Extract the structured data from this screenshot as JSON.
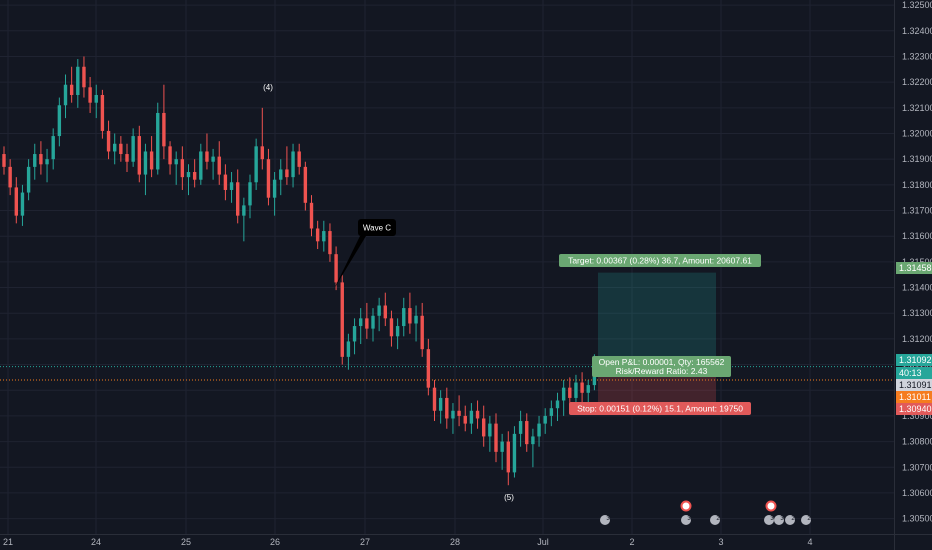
{
  "chart_data": {
    "type": "candlestick",
    "x_ticks": [
      "21",
      "24",
      "25",
      "26",
      "27",
      "28",
      "Jul",
      "2",
      "3",
      "4"
    ],
    "y_ticks": [
      "1.32500",
      "1.32400",
      "1.32300",
      "1.32200",
      "1.32100",
      "1.32000",
      "1.31900",
      "1.31800",
      "1.31700",
      "1.31600",
      "1.31500",
      "1.31400",
      "1.31300",
      "1.31200",
      "1.31100",
      "1.31000",
      "1.30900",
      "1.30800",
      "1.30700",
      "1.30600",
      "1.30500"
    ],
    "ylim": [
      1.3044,
      1.3252
    ],
    "series": [
      {
        "t": 0,
        "o": 1.3192,
        "h": 1.3195,
        "l": 1.3184,
        "c": 1.3187
      },
      {
        "t": 1,
        "o": 1.3187,
        "h": 1.319,
        "l": 1.3176,
        "c": 1.3179
      },
      {
        "t": 2,
        "o": 1.3179,
        "h": 1.3183,
        "l": 1.3165,
        "c": 1.3168
      },
      {
        "t": 3,
        "o": 1.3168,
        "h": 1.318,
        "l": 1.3164,
        "c": 1.3177
      },
      {
        "t": 4,
        "o": 1.3177,
        "h": 1.319,
        "l": 1.3174,
        "c": 1.3187
      },
      {
        "t": 5,
        "o": 1.3187,
        "h": 1.3196,
        "l": 1.3182,
        "c": 1.3192
      },
      {
        "t": 6,
        "o": 1.3192,
        "h": 1.3197,
        "l": 1.3184,
        "c": 1.3188
      },
      {
        "t": 7,
        "o": 1.3188,
        "h": 1.3194,
        "l": 1.3181,
        "c": 1.319
      },
      {
        "t": 8,
        "o": 1.319,
        "h": 1.3202,
        "l": 1.3186,
        "c": 1.3199
      },
      {
        "t": 9,
        "o": 1.3199,
        "h": 1.3214,
        "l": 1.3195,
        "c": 1.3211
      },
      {
        "t": 10,
        "o": 1.3211,
        "h": 1.3223,
        "l": 1.3206,
        "c": 1.3219
      },
      {
        "t": 11,
        "o": 1.3219,
        "h": 1.3226,
        "l": 1.3212,
        "c": 1.3215
      },
      {
        "t": 12,
        "o": 1.3215,
        "h": 1.3229,
        "l": 1.321,
        "c": 1.3226
      },
      {
        "t": 13,
        "o": 1.3226,
        "h": 1.323,
        "l": 1.3214,
        "c": 1.3218
      },
      {
        "t": 14,
        "o": 1.3218,
        "h": 1.3222,
        "l": 1.3208,
        "c": 1.3212
      },
      {
        "t": 15,
        "o": 1.3212,
        "h": 1.3219,
        "l": 1.3206,
        "c": 1.3215
      },
      {
        "t": 16,
        "o": 1.3215,
        "h": 1.3217,
        "l": 1.3198,
        "c": 1.3201
      },
      {
        "t": 17,
        "o": 1.3201,
        "h": 1.3205,
        "l": 1.319,
        "c": 1.3193
      },
      {
        "t": 18,
        "o": 1.3193,
        "h": 1.32,
        "l": 1.3188,
        "c": 1.3196
      },
      {
        "t": 19,
        "o": 1.3196,
        "h": 1.3199,
        "l": 1.3189,
        "c": 1.3192
      },
      {
        "t": 20,
        "o": 1.3192,
        "h": 1.3196,
        "l": 1.3185,
        "c": 1.3189
      },
      {
        "t": 21,
        "o": 1.3189,
        "h": 1.3202,
        "l": 1.3187,
        "c": 1.3199
      },
      {
        "t": 22,
        "o": 1.3199,
        "h": 1.3203,
        "l": 1.3181,
        "c": 1.3184
      },
      {
        "t": 23,
        "o": 1.3184,
        "h": 1.3196,
        "l": 1.3176,
        "c": 1.3193
      },
      {
        "t": 24,
        "o": 1.3193,
        "h": 1.3199,
        "l": 1.3183,
        "c": 1.3186
      },
      {
        "t": 25,
        "o": 1.3186,
        "h": 1.3212,
        "l": 1.3184,
        "c": 1.3208
      },
      {
        "t": 26,
        "o": 1.3208,
        "h": 1.3219,
        "l": 1.319,
        "c": 1.3195
      },
      {
        "t": 27,
        "o": 1.3195,
        "h": 1.3197,
        "l": 1.3184,
        "c": 1.3188
      },
      {
        "t": 28,
        "o": 1.3188,
        "h": 1.3193,
        "l": 1.318,
        "c": 1.319
      },
      {
        "t": 29,
        "o": 1.319,
        "h": 1.3195,
        "l": 1.3178,
        "c": 1.3183
      },
      {
        "t": 30,
        "o": 1.3183,
        "h": 1.3188,
        "l": 1.3176,
        "c": 1.3185
      },
      {
        "t": 31,
        "o": 1.3185,
        "h": 1.319,
        "l": 1.3179,
        "c": 1.3182
      },
      {
        "t": 32,
        "o": 1.3182,
        "h": 1.3196,
        "l": 1.318,
        "c": 1.3193
      },
      {
        "t": 33,
        "o": 1.3193,
        "h": 1.32,
        "l": 1.3186,
        "c": 1.3189
      },
      {
        "t": 34,
        "o": 1.3189,
        "h": 1.3194,
        "l": 1.3182,
        "c": 1.3191
      },
      {
        "t": 35,
        "o": 1.3191,
        "h": 1.3197,
        "l": 1.318,
        "c": 1.3184
      },
      {
        "t": 36,
        "o": 1.3184,
        "h": 1.3188,
        "l": 1.3174,
        "c": 1.3178
      },
      {
        "t": 37,
        "o": 1.3178,
        "h": 1.3185,
        "l": 1.3173,
        "c": 1.3181
      },
      {
        "t": 38,
        "o": 1.3181,
        "h": 1.3186,
        "l": 1.3165,
        "c": 1.3168
      },
      {
        "t": 39,
        "o": 1.3168,
        "h": 1.3175,
        "l": 1.3158,
        "c": 1.3172
      },
      {
        "t": 40,
        "o": 1.3172,
        "h": 1.3184,
        "l": 1.3167,
        "c": 1.3181
      },
      {
        "t": 41,
        "o": 1.3181,
        "h": 1.3198,
        "l": 1.3178,
        "c": 1.3195
      },
      {
        "t": 42,
        "o": 1.3195,
        "h": 1.321,
        "l": 1.3186,
        "c": 1.319
      },
      {
        "t": 43,
        "o": 1.319,
        "h": 1.3194,
        "l": 1.3172,
        "c": 1.3175
      },
      {
        "t": 44,
        "o": 1.3175,
        "h": 1.3185,
        "l": 1.3168,
        "c": 1.3182
      },
      {
        "t": 45,
        "o": 1.3182,
        "h": 1.319,
        "l": 1.3176,
        "c": 1.3186
      },
      {
        "t": 46,
        "o": 1.3186,
        "h": 1.3195,
        "l": 1.318,
        "c": 1.3183
      },
      {
        "t": 47,
        "o": 1.3183,
        "h": 1.3196,
        "l": 1.3179,
        "c": 1.3193
      },
      {
        "t": 48,
        "o": 1.3193,
        "h": 1.3196,
        "l": 1.3184,
        "c": 1.3187
      },
      {
        "t": 49,
        "o": 1.3187,
        "h": 1.3189,
        "l": 1.317,
        "c": 1.3173
      },
      {
        "t": 50,
        "o": 1.3173,
        "h": 1.3176,
        "l": 1.316,
        "c": 1.3163
      },
      {
        "t": 51,
        "o": 1.3163,
        "h": 1.3166,
        "l": 1.3155,
        "c": 1.3158
      },
      {
        "t": 52,
        "o": 1.3158,
        "h": 1.3166,
        "l": 1.3154,
        "c": 1.3162
      },
      {
        "t": 53,
        "o": 1.3162,
        "h": 1.3165,
        "l": 1.315,
        "c": 1.3153
      },
      {
        "t": 54,
        "o": 1.3153,
        "h": 1.3156,
        "l": 1.3139,
        "c": 1.3142
      },
      {
        "t": 55,
        "o": 1.3142,
        "h": 1.3145,
        "l": 1.311,
        "c": 1.3113
      },
      {
        "t": 56,
        "o": 1.3113,
        "h": 1.3122,
        "l": 1.3108,
        "c": 1.3119
      },
      {
        "t": 57,
        "o": 1.3119,
        "h": 1.3128,
        "l": 1.3114,
        "c": 1.3125
      },
      {
        "t": 58,
        "o": 1.3125,
        "h": 1.3132,
        "l": 1.3118,
        "c": 1.3128
      },
      {
        "t": 59,
        "o": 1.3128,
        "h": 1.3134,
        "l": 1.312,
        "c": 1.3124
      },
      {
        "t": 60,
        "o": 1.3124,
        "h": 1.3132,
        "l": 1.3119,
        "c": 1.3129
      },
      {
        "t": 61,
        "o": 1.3129,
        "h": 1.3136,
        "l": 1.3123,
        "c": 1.3133
      },
      {
        "t": 62,
        "o": 1.3133,
        "h": 1.3138,
        "l": 1.3125,
        "c": 1.3128
      },
      {
        "t": 63,
        "o": 1.3128,
        "h": 1.3131,
        "l": 1.3117,
        "c": 1.3121
      },
      {
        "t": 64,
        "o": 1.3121,
        "h": 1.3128,
        "l": 1.3116,
        "c": 1.3125
      },
      {
        "t": 65,
        "o": 1.3125,
        "h": 1.3136,
        "l": 1.3121,
        "c": 1.3132
      },
      {
        "t": 66,
        "o": 1.3132,
        "h": 1.3138,
        "l": 1.3122,
        "c": 1.3126
      },
      {
        "t": 67,
        "o": 1.3126,
        "h": 1.3133,
        "l": 1.3119,
        "c": 1.3129
      },
      {
        "t": 68,
        "o": 1.3129,
        "h": 1.3134,
        "l": 1.3113,
        "c": 1.3116
      },
      {
        "t": 69,
        "o": 1.3116,
        "h": 1.312,
        "l": 1.3098,
        "c": 1.3101
      },
      {
        "t": 70,
        "o": 1.3101,
        "h": 1.3104,
        "l": 1.3088,
        "c": 1.3092
      },
      {
        "t": 71,
        "o": 1.3092,
        "h": 1.31,
        "l": 1.3087,
        "c": 1.3097
      },
      {
        "t": 72,
        "o": 1.3097,
        "h": 1.3101,
        "l": 1.3085,
        "c": 1.3089
      },
      {
        "t": 73,
        "o": 1.3089,
        "h": 1.3095,
        "l": 1.3083,
        "c": 1.3092
      },
      {
        "t": 74,
        "o": 1.3092,
        "h": 1.3098,
        "l": 1.3086,
        "c": 1.309
      },
      {
        "t": 75,
        "o": 1.309,
        "h": 1.3094,
        "l": 1.3084,
        "c": 1.3087
      },
      {
        "t": 76,
        "o": 1.3087,
        "h": 1.3095,
        "l": 1.3083,
        "c": 1.3092
      },
      {
        "t": 77,
        "o": 1.3092,
        "h": 1.3096,
        "l": 1.3085,
        "c": 1.3089
      },
      {
        "t": 78,
        "o": 1.3089,
        "h": 1.3094,
        "l": 1.3078,
        "c": 1.3082
      },
      {
        "t": 79,
        "o": 1.3082,
        "h": 1.309,
        "l": 1.3076,
        "c": 1.3087
      },
      {
        "t": 80,
        "o": 1.3087,
        "h": 1.3091,
        "l": 1.3072,
        "c": 1.3076
      },
      {
        "t": 81,
        "o": 1.3076,
        "h": 1.3083,
        "l": 1.3069,
        "c": 1.308
      },
      {
        "t": 82,
        "o": 1.308,
        "h": 1.3084,
        "l": 1.3063,
        "c": 1.3068
      },
      {
        "t": 83,
        "o": 1.3068,
        "h": 1.3086,
        "l": 1.3066,
        "c": 1.3083
      },
      {
        "t": 84,
        "o": 1.3083,
        "h": 1.3092,
        "l": 1.3078,
        "c": 1.3088
      },
      {
        "t": 85,
        "o": 1.3088,
        "h": 1.3091,
        "l": 1.3076,
        "c": 1.3079
      },
      {
        "t": 86,
        "o": 1.3079,
        "h": 1.3085,
        "l": 1.307,
        "c": 1.3082
      },
      {
        "t": 87,
        "o": 1.3082,
        "h": 1.309,
        "l": 1.3078,
        "c": 1.3087
      },
      {
        "t": 88,
        "o": 1.3087,
        "h": 1.3093,
        "l": 1.3083,
        "c": 1.309
      },
      {
        "t": 89,
        "o": 1.309,
        "h": 1.3096,
        "l": 1.3086,
        "c": 1.3093
      },
      {
        "t": 90,
        "o": 1.3093,
        "h": 1.3099,
        "l": 1.3088,
        "c": 1.3096
      },
      {
        "t": 91,
        "o": 1.3096,
        "h": 1.3104,
        "l": 1.309,
        "c": 1.3101
      },
      {
        "t": 92,
        "o": 1.3101,
        "h": 1.3105,
        "l": 1.3093,
        "c": 1.3097
      },
      {
        "t": 93,
        "o": 1.3097,
        "h": 1.3106,
        "l": 1.3094,
        "c": 1.3103
      },
      {
        "t": 94,
        "o": 1.3103,
        "h": 1.3107,
        "l": 1.3095,
        "c": 1.3099
      },
      {
        "t": 95,
        "o": 1.3099,
        "h": 1.3104,
        "l": 1.3094,
        "c": 1.3102
      },
      {
        "t": 96,
        "o": 1.3102,
        "h": 1.3114,
        "l": 1.31,
        "c": 1.3109
      }
    ],
    "annotations": {
      "wave4": "(4)",
      "waveC": "Wave C",
      "wave5": "(5)"
    },
    "position": {
      "entry": 1.31092,
      "target": 1.31458,
      "stop": 1.3094,
      "target_label": "Target: 0.00367 (0.28%) 36.7, Amount: 20607.61",
      "pnl_label": "Open P&L: 0.00001, Qty: 165562",
      "rr_label": "Risk/Reward Ratio: 2.43",
      "stop_label": "Stop: 0.00151 (0.12%) 15.1, Amount: 19750"
    },
    "price_labels": {
      "target_price": "1.31458",
      "current_price": "1.31092",
      "countdown": "40:13",
      "line_price": "1.31091",
      "orange_price": "1.31011",
      "stop_price": "1.30940"
    },
    "events": [
      "3",
      "3",
      "2",
      "3",
      "3",
      "2",
      "2"
    ],
    "colors": {
      "up": "#26a69a",
      "down": "#ef5350",
      "background": "#131722",
      "grid": "#1f2331",
      "target_zone": "rgba(38,166,154,0.22)",
      "stop_zone": "rgba(239,83,80,0.22)",
      "current_line": "#26a69a",
      "orange_line": "#f57c1f"
    }
  }
}
